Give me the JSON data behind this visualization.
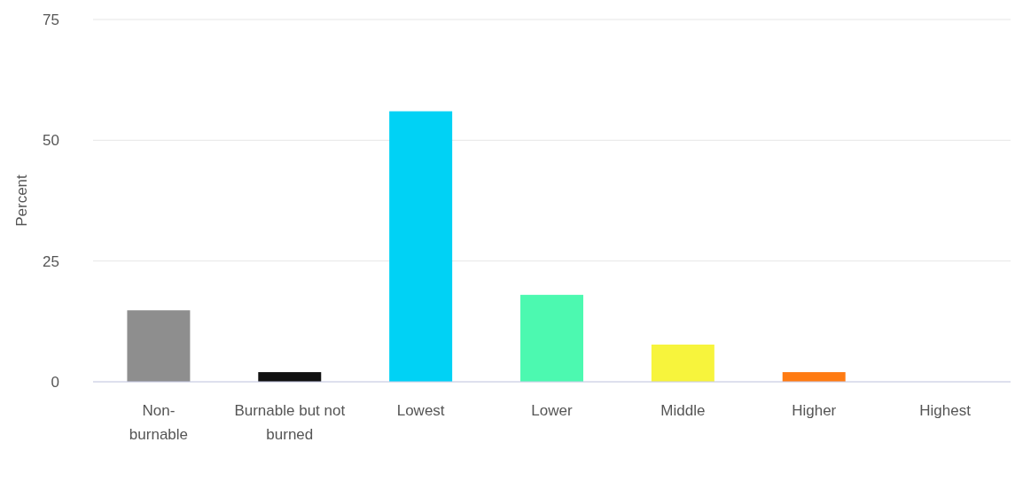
{
  "chart_data": {
    "type": "bar",
    "ylabel": "Percent",
    "categories": [
      "Non-burnable",
      "Burnable but not burned",
      "Lowest",
      "Lower",
      "Middle",
      "Higher",
      "Highest"
    ],
    "values": [
      14.8,
      2,
      56,
      18,
      7.7,
      2,
      0
    ],
    "colors": [
      "#8e8e8e",
      "#111111",
      "#00d2f5",
      "#4cf9b0",
      "#f7f43c",
      "#ff7b12",
      "#e8262a"
    ],
    "ylim": [
      0,
      75
    ],
    "yticks": [
      0,
      25,
      50,
      75
    ],
    "grid": "y"
  }
}
